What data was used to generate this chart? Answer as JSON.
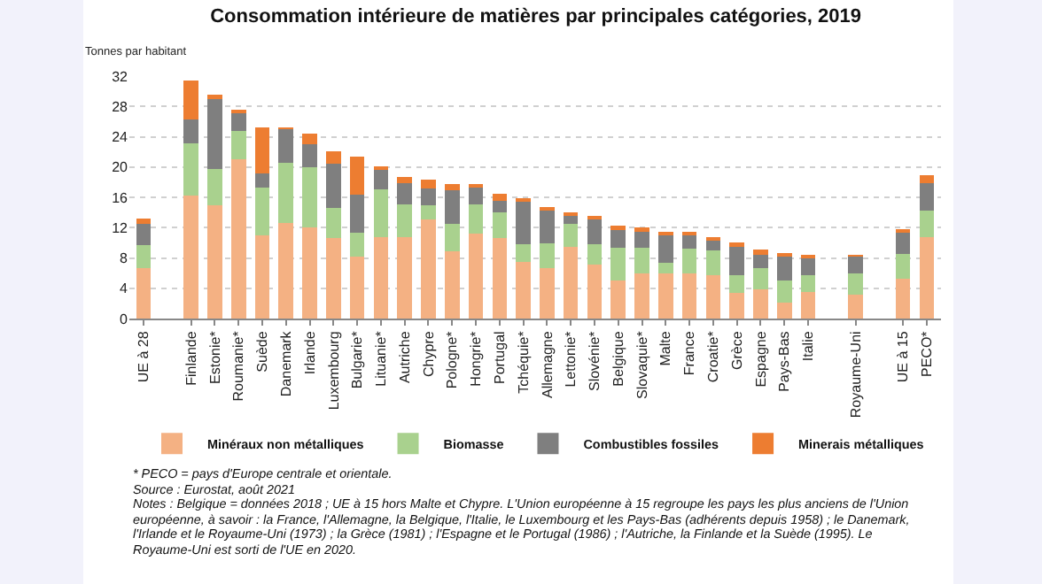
{
  "chart_data": {
    "type": "bar",
    "stacked": true,
    "title": "Consommation intérieure de matières par principales catégories, 2019",
    "ylabel": "Tonnes par habitant",
    "categories": [
      "UE à 28",
      null,
      "Finlande",
      "Estonie*",
      "Roumanie*",
      "Suède",
      "Danemark",
      "Irlande",
      "Luxembourg",
      "Bulgarie*",
      "Lituanie*",
      "Autriche",
      "Chypre",
      "Pologne*",
      "Hongrie*",
      "Portugal",
      "Tchéquie*",
      "Allemagne",
      "Lettonie*",
      "Slovénie*",
      "Belgique",
      "Slovaquie*",
      "Malte",
      "France",
      "Croatie*",
      "Grèce",
      "Espagne",
      "Pays-Bas",
      "Italie",
      null,
      "Royaume-Uni",
      null,
      "UE à 15",
      "PECO*"
    ],
    "series": [
      {
        "name": "Minéraux non métalliques",
        "color": "#f4b183",
        "values": [
          6.6,
          null,
          16.2,
          14.9,
          21.0,
          11.0,
          12.6,
          12.0,
          10.6,
          8.2,
          10.7,
          10.8,
          13.1,
          8.9,
          11.2,
          10.6,
          7.5,
          6.7,
          9.5,
          7.1,
          5.0,
          6.0,
          6.0,
          5.9,
          5.7,
          3.4,
          3.9,
          2.1,
          3.5,
          null,
          3.1,
          null,
          5.3,
          10.8
        ]
      },
      {
        "name": "Biomasse",
        "color": "#a9d18e",
        "values": [
          3.1,
          null,
          6.9,
          4.8,
          3.8,
          6.3,
          7.9,
          8.0,
          4.0,
          3.1,
          6.4,
          4.3,
          1.8,
          3.6,
          3.9,
          3.4,
          2.3,
          3.2,
          3.0,
          2.7,
          4.4,
          3.3,
          1.4,
          3.3,
          3.3,
          2.3,
          2.8,
          2.9,
          2.2,
          null,
          2.9,
          null,
          3.2,
          3.5
        ]
      },
      {
        "name": "Combustibles fossiles",
        "color": "#7f7f7f",
        "values": [
          2.8,
          null,
          3.2,
          9.4,
          2.3,
          1.8,
          4.5,
          3.0,
          5.8,
          5.1,
          2.7,
          2.8,
          2.3,
          4.4,
          2.3,
          1.5,
          5.7,
          4.3,
          1.2,
          3.5,
          2.3,
          2.3,
          3.7,
          2.0,
          1.4,
          3.8,
          1.7,
          3.2,
          2.3,
          null,
          2.2,
          null,
          2.8,
          3.6
        ]
      },
      {
        "name": "Minerais métalliques",
        "color": "#ed7d31",
        "values": [
          0.7,
          null,
          5.1,
          0.4,
          0.4,
          6.1,
          0.2,
          1.4,
          1.7,
          5.0,
          0.2,
          0.8,
          1.1,
          0.9,
          0.2,
          1.0,
          0.3,
          0.5,
          0.2,
          0.3,
          0.6,
          0.4,
          0.2,
          0.2,
          0.2,
          0.6,
          0.7,
          0.4,
          0.2,
          null,
          0.1,
          null,
          0.5,
          1.0
        ]
      }
    ],
    "ylim": [
      0,
      32
    ],
    "yticks": [
      0,
      4,
      8,
      12,
      16,
      20,
      24,
      28,
      32
    ],
    "grid": "y",
    "legend": "bottom",
    "annotations": [
      "* PECO = pays d'Europe centrale et orientale.",
      "Source : Eurostat, août 2021",
      "Notes : Belgique = données 2018 ; UE à 15 hors Malte et Chypre. L'Union européenne à 15 regroupe les pays les plus anciens de l'Union européenne, à savoir : la France, l'Allemagne, la Belgique, l'Italie, le Luxembourg et les Pays-Bas (adhérents depuis 1958) ; le Danemark, l'Irlande et le Royaume-Uni (1973) ; la Grèce (1981) ; l'Espagne et le Portugal (1986) ; l'Autriche, la Finlande et la Suède (1995). Le Royaume-Uni est sorti de l'UE en 2020."
    ]
  }
}
